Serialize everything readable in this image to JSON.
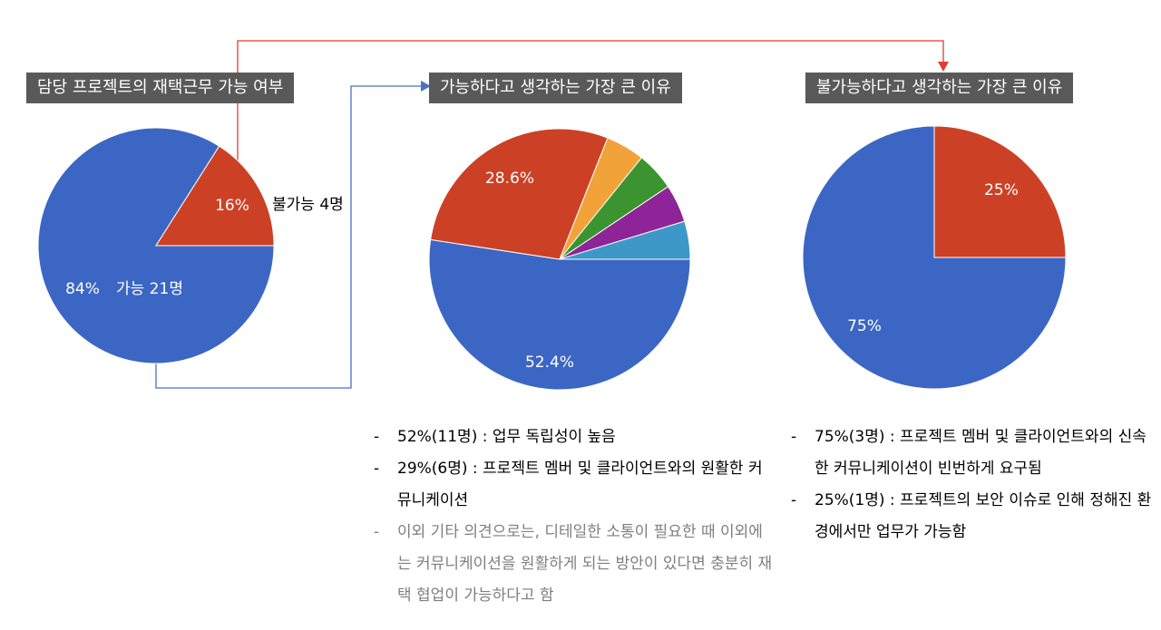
{
  "chart_data": [
    {
      "type": "pie",
      "title": "담당 프로젝트의 재택근무 가능 여부",
      "slices": [
        {
          "value": 84,
          "percent_label": "84%",
          "label": "가능 21명",
          "color": "#3c66c4"
        },
        {
          "value": 16,
          "percent_label": "16%",
          "label": "불가능 4명",
          "color": "#cc4125"
        }
      ]
    },
    {
      "type": "pie",
      "title": "가능하다고 생각하는 가장 큰 이유",
      "slices": [
        {
          "value": 52.4,
          "percent_label": "52.4%",
          "color": "#3c66c4"
        },
        {
          "value": 28.6,
          "percent_label": "28.6%",
          "color": "#cc4125"
        },
        {
          "value": 4.8,
          "percent_label": "",
          "color": "#f1a33a"
        },
        {
          "value": 4.8,
          "percent_label": "",
          "color": "#3c9430"
        },
        {
          "value": 4.7,
          "percent_label": "",
          "color": "#8e2497"
        },
        {
          "value": 4.7,
          "percent_label": "",
          "color": "#3d98c7"
        }
      ]
    },
    {
      "type": "pie",
      "title": "불가능하다고 생각하는 가장 큰 이유",
      "slices": [
        {
          "value": 75,
          "percent_label": "75%",
          "color": "#3c66c4"
        },
        {
          "value": 25,
          "percent_label": "25%",
          "color": "#cc4125"
        }
      ]
    }
  ],
  "notes_mid": [
    {
      "text": "52%(11명) : 업무 독립성이 높음",
      "gray": false
    },
    {
      "text": "29%(6명) : 프로젝트 멤버 및 클라이언트와의 원활한 커뮤니케이션",
      "gray": false
    },
    {
      "text": "이외 기타 의견으로는, 디테일한 소통이 필요한 때 이외에는 커뮤니케이션을 원활하게 되는 방안이 있다면 충분히 재택 협업이 가능하다고 함",
      "gray": true
    }
  ],
  "notes_right": [
    {
      "text": "75%(3명) : 프로젝트 멤버 및 클라이언트와의 신속한 커뮤니케이션이 빈번하게 요구됨",
      "gray": false
    },
    {
      "text": "25%(1명) : 프로젝트의 보안 이슈로 인해 정해진 환경에서만 업무가 가능함",
      "gray": false
    }
  ],
  "bullet": "-",
  "colors": {
    "title_bg": "#595959",
    "connector_red": "#e03c31",
    "connector_blue": "#4a72c4"
  }
}
